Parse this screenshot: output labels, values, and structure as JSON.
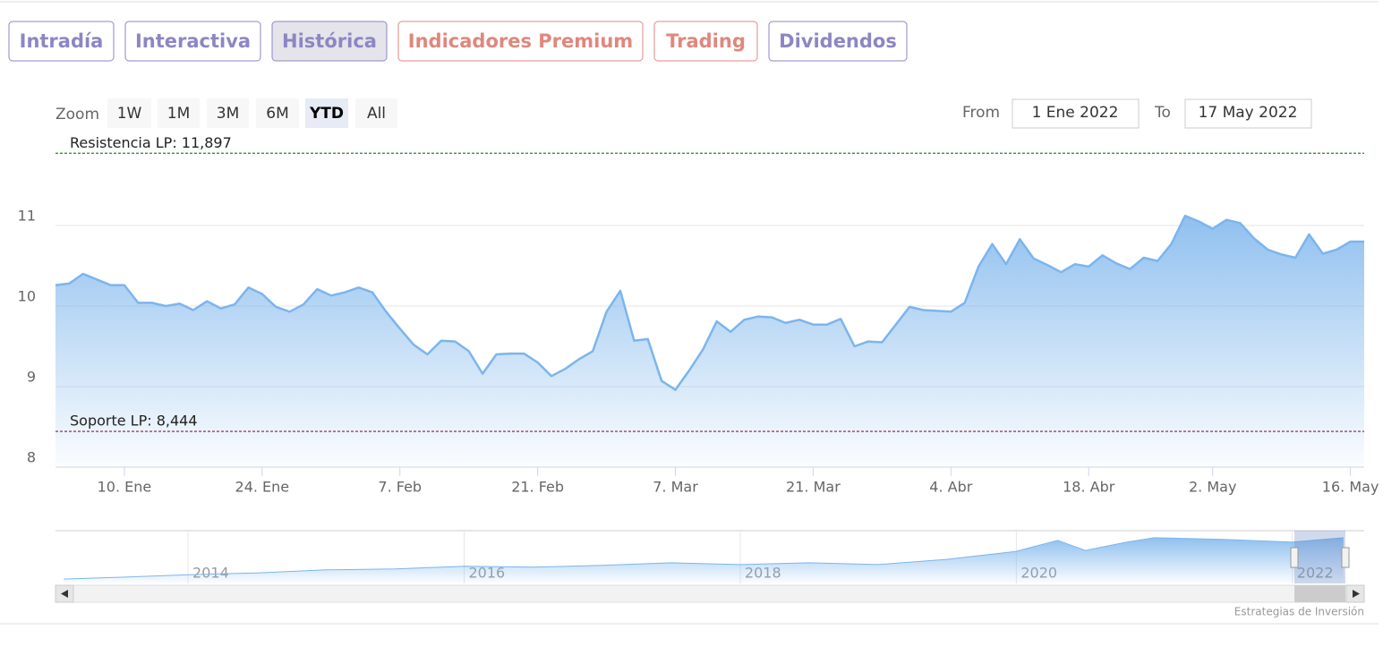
{
  "tabs": [
    {
      "label": "Intradía",
      "color": "#8c86c4"
    },
    {
      "label": "Interactiva",
      "color": "#8c86c4"
    },
    {
      "label": "Histórica",
      "color": "#8c86c4",
      "active": true
    },
    {
      "label": "Indicadores Premium",
      "color": "#e0877d"
    },
    {
      "label": "Trading",
      "color": "#e0877d"
    },
    {
      "label": "Dividendos",
      "color": "#8c86c4"
    }
  ],
  "zoom": {
    "label": "Zoom",
    "buttons": [
      "1W",
      "1M",
      "3M",
      "6M",
      "YTD",
      "All"
    ],
    "selected": "YTD"
  },
  "range": {
    "from_label": "From",
    "from": "1 Ene 2022",
    "to_label": "To",
    "to": "17 May 2022"
  },
  "credit": "Estrategias de Inversión",
  "chart_data": [
    {
      "type": "area",
      "grid": true,
      "categories": [
        null,
        null,
        null,
        null,
        null,
        "10. Ene",
        null,
        null,
        null,
        null,
        null,
        null,
        null,
        null,
        null,
        "24. Ene",
        null,
        null,
        null,
        null,
        null,
        null,
        null,
        null,
        null,
        "7. Feb",
        null,
        null,
        null,
        null,
        null,
        null,
        null,
        null,
        null,
        "21. Feb",
        null,
        null,
        null,
        null,
        null,
        null,
        null,
        null,
        null,
        "7. Mar",
        null,
        null,
        null,
        null,
        null,
        null,
        null,
        null,
        null,
        "21. Mar",
        null,
        null,
        null,
        null,
        null,
        null,
        null,
        null,
        null,
        "4. Abr",
        null,
        null,
        null,
        null,
        null,
        null,
        null,
        null,
        null,
        "18. Abr",
        null,
        null,
        null,
        null,
        null,
        null,
        null,
        null,
        "2. May",
        null,
        null,
        null,
        null,
        null,
        null,
        null,
        null,
        null,
        "16. May",
        null
      ],
      "series": [
        {
          "color": "#7cb5ec",
          "values": [
            10.26,
            10.28,
            10.4,
            10.33,
            10.26,
            10.26,
            10.04,
            10.04,
            10.0,
            10.03,
            9.95,
            10.06,
            9.97,
            10.02,
            10.23,
            10.15,
            9.99,
            9.93,
            10.02,
            10.21,
            10.13,
            10.17,
            10.23,
            10.17,
            9.93,
            9.72,
            9.52,
            9.4,
            9.57,
            9.56,
            9.44,
            9.16,
            9.4,
            9.41,
            9.41,
            9.3,
            9.13,
            9.22,
            9.34,
            9.44,
            9.93,
            10.19,
            9.57,
            9.59,
            9.07,
            8.96,
            9.2,
            9.46,
            9.81,
            9.68,
            9.83,
            9.87,
            9.86,
            9.79,
            9.83,
            9.77,
            9.77,
            9.84,
            9.5,
            9.56,
            9.55,
            9.77,
            9.99,
            9.95,
            9.94,
            9.93,
            10.04,
            10.49,
            10.77,
            10.52,
            10.83,
            10.59,
            10.51,
            10.42,
            10.52,
            10.49,
            10.63,
            10.53,
            10.46,
            10.6,
            10.56,
            10.77,
            11.12,
            11.05,
            10.96,
            11.07,
            11.03,
            10.84,
            10.7,
            10.64,
            10.6,
            10.89,
            10.65,
            10.7,
            10.8,
            10.8
          ]
        }
      ],
      "ylim": [
        8,
        12
      ],
      "yticks": [
        8,
        9,
        10,
        11
      ],
      "plot_lines": [
        {
          "value": 11.897,
          "label": "Resistencia LP: 11,897",
          "color": "#1f8a1f"
        },
        {
          "value": 8.444,
          "label": "Soporte LP: 8,444",
          "color": "#8b1a3a"
        }
      ]
    },
    {
      "type": "area",
      "grid": true,
      "x": [
        2013.1,
        2013.5,
        2014.0,
        2014.5,
        2015.0,
        2015.5,
        2016.0,
        2016.5,
        2017.0,
        2017.5,
        2018.0,
        2018.5,
        2019.0,
        2019.5,
        2020.0,
        2020.3,
        2020.5,
        2020.8,
        2021.0,
        2021.5,
        2022.0,
        2022.37
      ],
      "series": [
        {
          "color": "#7cb5ec",
          "values": [
            1.0,
            1.4,
            2.0,
            2.4,
            3.1,
            3.3,
            3.9,
            3.7,
            4.1,
            4.7,
            4.3,
            4.7,
            4.3,
            5.5,
            7.3,
            9.8,
            7.5,
            9.4,
            10.4,
            10.0,
            9.4,
            10.4
          ]
        }
      ],
      "xlim": [
        2013.04,
        2022.52
      ],
      "xticks": [
        2014,
        2016,
        2018,
        2020,
        2022
      ],
      "ylim": [
        0,
        12
      ]
    }
  ]
}
